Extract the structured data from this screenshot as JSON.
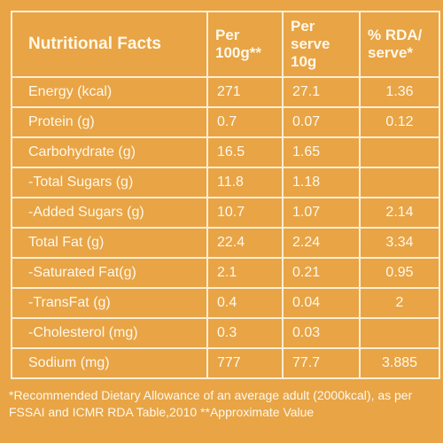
{
  "table": {
    "header": [
      "Nutritional Facts",
      "Per 100g**",
      "Per serve 10g",
      "% RDA/ serve*"
    ],
    "rows": [
      [
        "Energy (kcal)",
        "271",
        "27.1",
        "1.36"
      ],
      [
        "Protein (g)",
        "0.7",
        "0.07",
        "0.12"
      ],
      [
        "Carbohydrate (g)",
        "16.5",
        "1.65",
        null
      ],
      [
        "-Total Sugars (g)",
        "11.8",
        "1.18",
        null
      ],
      [
        "-Added Sugars (g)",
        "10.7",
        "1.07",
        "2.14"
      ],
      [
        "Total Fat (g)",
        "22.4",
        "2.24",
        "3.34"
      ],
      [
        "-Saturated Fat(g)",
        "2.1",
        "0.21",
        "0.95"
      ],
      [
        "-TransFat (g)",
        "0.4",
        "0.04",
        "2"
      ],
      [
        "-Cholesterol (mg)",
        "0.3",
        "0.03",
        null
      ],
      [
        "Sodium (mg)",
        "777",
        "77.7",
        "3.885"
      ]
    ]
  },
  "footnote": "*Recommended Dietary Allowance of an average adult (2000kcal), as per FSSAI and ICMR RDA Table,2010 **Approximate Value"
}
